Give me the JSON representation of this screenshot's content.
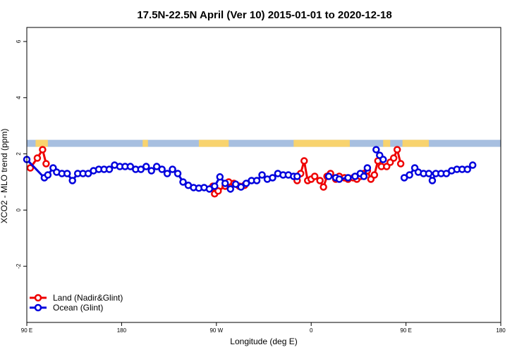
{
  "chart_data": {
    "type": "line",
    "title": "17.5N-22.5N April (Ver 10)   2015-01-01 to 2020-12-18",
    "xlabel": "Longitude (deg E)",
    "ylabel": "XCO2 - MLO trend (ppm)",
    "xlim": [
      -90,
      180
    ],
    "ylim": [
      -4,
      6.5
    ],
    "x_ticks": [
      {
        "value": -90,
        "label": "90 E"
      },
      {
        "value": -36,
        "label": "180"
      },
      {
        "value": 18,
        "label": "90 W"
      },
      {
        "value": 72,
        "label": "0"
      },
      {
        "value": 126,
        "label": "90 E"
      },
      {
        "value": 180,
        "label": "180"
      }
    ],
    "y_ticks": [
      {
        "value": -2,
        "label": "-2"
      },
      {
        "value": 0,
        "label": "0"
      },
      {
        "value": 2,
        "label": "2"
      },
      {
        "value": 4,
        "label": "4"
      },
      {
        "value": 6,
        "label": "6"
      }
    ],
    "legend_position": "bottom-left",
    "land_strip": {
      "ymin": 2.25,
      "ymax": 2.5,
      "ocean_color": "#a7bfe0",
      "land_color": "#f8d36e",
      "land_ranges": [
        [
          -85,
          -78
        ],
        [
          -24,
          -21
        ],
        [
          8,
          25
        ],
        [
          62,
          94
        ],
        [
          113,
          117
        ],
        [
          124,
          139
        ]
      ]
    },
    "series": [
      {
        "name": "Land (Nadir&Glint)",
        "color": "#ee0000",
        "segments": [
          [
            [
              -88,
              1.5
            ],
            [
              -84,
              1.85
            ],
            [
              -81,
              2.15
            ],
            [
              -79,
              1.65
            ]
          ],
          [
            [
              16,
              0.85
            ],
            [
              17,
              0.58
            ],
            [
              19,
              0.68
            ],
            [
              23,
              0.85
            ],
            [
              25,
              1.0
            ],
            [
              28,
              0.95
            ],
            [
              31,
              0.85
            ],
            [
              34,
              0.88
            ]
          ],
          [
            [
              64,
              1.05
            ],
            [
              66,
              1.3
            ],
            [
              68,
              1.75
            ],
            [
              70,
              1.05
            ],
            [
              72,
              1.1
            ],
            [
              74,
              1.2
            ],
            [
              77,
              1.05
            ],
            [
              79,
              0.82
            ],
            [
              81,
              1.2
            ],
            [
              83,
              1.3
            ],
            [
              86,
              1.1
            ],
            [
              88,
              1.2
            ],
            [
              91,
              1.15
            ],
            [
              93,
              1.1
            ],
            [
              96,
              1.15
            ],
            [
              98,
              1.1
            ],
            [
              100,
              1.2
            ],
            [
              102,
              1.3
            ],
            [
              104,
              1.4
            ],
            [
              106,
              1.1
            ],
            [
              108,
              1.25
            ],
            [
              110,
              1.75
            ],
            [
              112,
              1.55
            ],
            [
              115,
              1.55
            ],
            [
              117,
              1.7
            ],
            [
              119,
              1.85
            ],
            [
              121,
              2.15
            ],
            [
              123,
              1.65
            ]
          ]
        ]
      },
      {
        "name": "Ocean (Glint)",
        "color": "#0000dd",
        "segments": [
          [
            [
              -90,
              1.8
            ],
            [
              -80,
              1.15
            ],
            [
              -78,
              1.25
            ],
            [
              -75,
              1.5
            ],
            [
              -73,
              1.35
            ],
            [
              -70,
              1.3
            ],
            [
              -67,
              1.3
            ],
            [
              -64,
              1.05
            ],
            [
              -61,
              1.3
            ],
            [
              -58,
              1.3
            ],
            [
              -55,
              1.3
            ],
            [
              -52,
              1.4
            ],
            [
              -49,
              1.45
            ],
            [
              -46,
              1.45
            ],
            [
              -43,
              1.45
            ],
            [
              -40,
              1.6
            ],
            [
              -37,
              1.55
            ],
            [
              -34,
              1.55
            ],
            [
              -31,
              1.55
            ],
            [
              -28,
              1.45
            ],
            [
              -25,
              1.45
            ],
            [
              -22,
              1.55
            ],
            [
              -19,
              1.4
            ],
            [
              -16,
              1.55
            ],
            [
              -13,
              1.45
            ],
            [
              -10,
              1.3
            ],
            [
              -7,
              1.45
            ],
            [
              -4,
              1.3
            ],
            [
              -1,
              1.0
            ],
            [
              2,
              0.88
            ],
            [
              5,
              0.8
            ],
            [
              8,
              0.78
            ],
            [
              11,
              0.8
            ],
            [
              14,
              0.75
            ],
            [
              17,
              0.85
            ],
            [
              20,
              1.18
            ],
            [
              23,
              0.95
            ],
            [
              26,
              0.75
            ],
            [
              29,
              0.92
            ],
            [
              32,
              0.82
            ],
            [
              35,
              0.95
            ],
            [
              38,
              1.05
            ],
            [
              41,
              1.05
            ],
            [
              44,
              1.25
            ],
            [
              47,
              1.1
            ],
            [
              50,
              1.15
            ],
            [
              53,
              1.3
            ],
            [
              56,
              1.25
            ],
            [
              59,
              1.25
            ],
            [
              62,
              1.2
            ],
            [
              64,
              1.2
            ]
          ],
          [
            [
              82,
              1.2
            ],
            [
              86,
              1.15
            ],
            [
              88,
              1.1
            ],
            [
              93,
              1.15
            ],
            [
              97,
              1.2
            ],
            [
              100,
              1.3
            ],
            [
              102,
              1.2
            ],
            [
              104,
              1.5
            ]
          ],
          [
            [
              109,
              2.15
            ],
            [
              111,
              1.95
            ],
            [
              113,
              1.8
            ]
          ],
          [
            [
              125,
              1.15
            ],
            [
              128,
              1.25
            ],
            [
              131,
              1.5
            ],
            [
              133,
              1.35
            ],
            [
              136,
              1.3
            ],
            [
              139,
              1.3
            ],
            [
              141,
              1.05
            ],
            [
              143,
              1.3
            ],
            [
              146,
              1.3
            ],
            [
              149,
              1.3
            ],
            [
              152,
              1.4
            ],
            [
              155,
              1.45
            ],
            [
              158,
              1.45
            ],
            [
              161,
              1.45
            ],
            [
              164,
              1.6
            ]
          ]
        ]
      }
    ]
  }
}
